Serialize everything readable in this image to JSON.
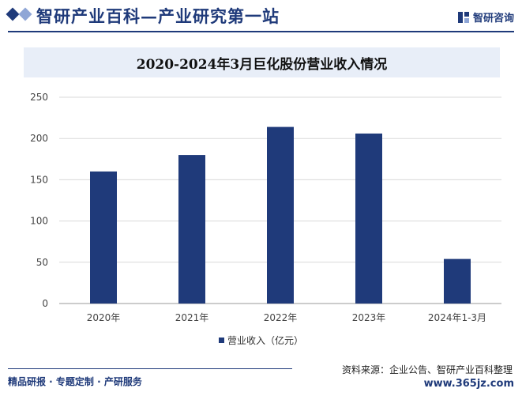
{
  "header": {
    "title": "智研产业百科—产业研究第一站",
    "logo_text": "智研咨询"
  },
  "chart_data": {
    "type": "bar",
    "title": "2020-2024年3月巨化股份营业收入情况",
    "categories": [
      "2020年",
      "2021年",
      "2022年",
      "2023年",
      "2024年1-3月"
    ],
    "series": [
      {
        "name": "营业收入（亿元）",
        "values": [
          160,
          180,
          214,
          206,
          54
        ]
      }
    ],
    "ylim": [
      0,
      250
    ],
    "yticks": [
      0,
      50,
      100,
      150,
      200,
      250
    ],
    "ytick_labels": [
      "0",
      "50",
      "100",
      "150",
      "200",
      "250"
    ],
    "grid": true,
    "legend_position": "bottom",
    "bar_color": "#1f3a7a"
  },
  "footer": {
    "left": "精品研报 · 专题定制 · 产研服务",
    "source": "资料来源：企业公告、智研产业百科整理",
    "url": "www.365jz.com"
  }
}
